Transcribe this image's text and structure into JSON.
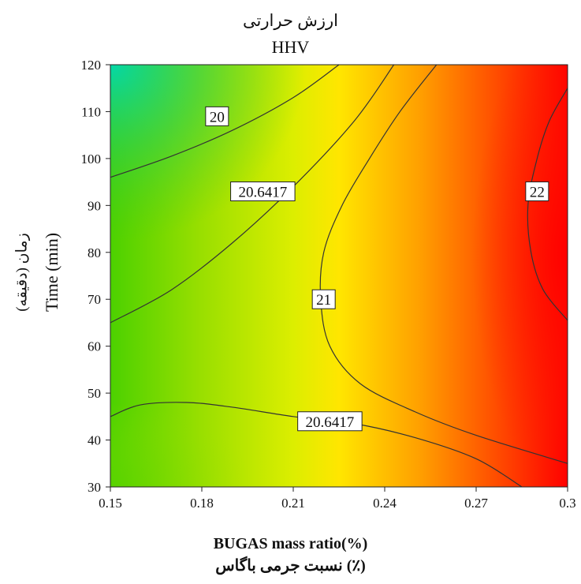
{
  "chart_data": {
    "type": "contour",
    "title": "ارزش حرارتی",
    "subtitle": "HHV",
    "xlabel": "BUGAS mass ratio(%)",
    "xlabel_fa": "نسبت جرمی باگاس (٪)",
    "ylabel": "Time (min)",
    "ylabel_fa": "زمان (دقیقه)",
    "xlim": [
      0.15,
      0.3
    ],
    "ylim": [
      30,
      120
    ],
    "x_ticks": [
      "0.15",
      "0.18",
      "0.21",
      "0.24",
      "0.27",
      "0.3"
    ],
    "y_ticks": [
      "30",
      "40",
      "50",
      "60",
      "70",
      "80",
      "90",
      "100",
      "110",
      "120"
    ],
    "colormap": [
      "#00c896",
      "#4fd400",
      "#b9e800",
      "#ffe400",
      "#ff9a00",
      "#ff3c00",
      "#ff0000"
    ],
    "contours": [
      {
        "level": "20",
        "label_at": [
          0.185,
          109
        ],
        "points": [
          [
            0.15,
            96.0
          ],
          [
            0.17,
            100.5
          ],
          [
            0.19,
            106.0
          ],
          [
            0.21,
            113.0
          ],
          [
            0.225,
            120.0
          ]
        ]
      },
      {
        "level": "20.6417",
        "label_at": [
          0.2,
          93
        ],
        "points": [
          [
            0.15,
            65.0
          ],
          [
            0.17,
            72.0
          ],
          [
            0.19,
            82.0
          ],
          [
            0.21,
            94.0
          ],
          [
            0.23,
            108.0
          ],
          [
            0.243,
            120.0
          ]
        ]
      },
      {
        "level": "21",
        "label_at": [
          0.22,
          70
        ],
        "points": [
          [
            0.257,
            120.0
          ],
          [
            0.245,
            110.0
          ],
          [
            0.235,
            100.0
          ],
          [
            0.226,
            90.0
          ],
          [
            0.22,
            80.0
          ],
          [
            0.219,
            70.0
          ],
          [
            0.222,
            60.0
          ],
          [
            0.232,
            52.0
          ],
          [
            0.25,
            46.0
          ],
          [
            0.27,
            41.0
          ],
          [
            0.3,
            35.0
          ]
        ]
      },
      {
        "level": "22",
        "label_at": [
          0.29,
          93
        ],
        "points": [
          [
            0.3,
            115.0
          ],
          [
            0.294,
            108.0
          ],
          [
            0.29,
            100.0
          ],
          [
            0.287,
            90.0
          ],
          [
            0.288,
            80.0
          ],
          [
            0.292,
            72.0
          ],
          [
            0.3,
            65.5
          ]
        ]
      },
      {
        "level": "20.6417",
        "label_at": [
          0.222,
          44
        ],
        "points": [
          [
            0.15,
            45.0
          ],
          [
            0.16,
            47.5
          ],
          [
            0.175,
            48.0
          ],
          [
            0.19,
            47.0
          ],
          [
            0.21,
            45.0
          ],
          [
            0.23,
            43.5
          ],
          [
            0.25,
            40.5
          ],
          [
            0.27,
            36.0
          ],
          [
            0.285,
            30.0
          ]
        ]
      }
    ]
  }
}
